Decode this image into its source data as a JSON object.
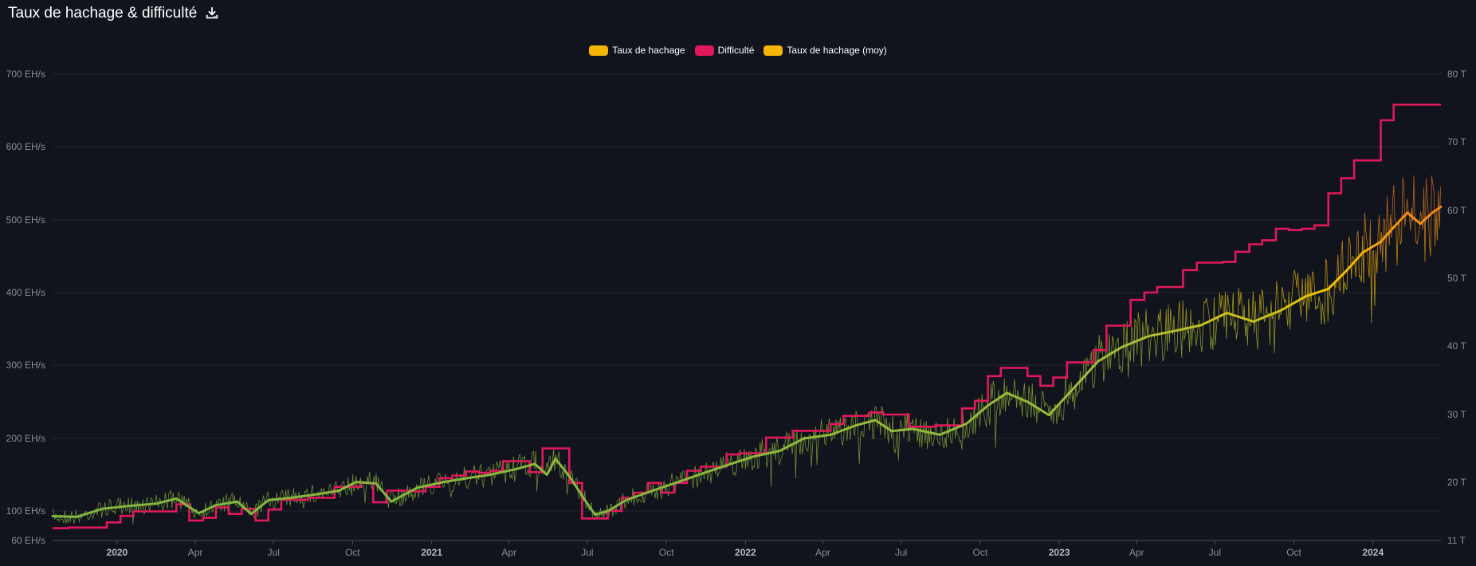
{
  "title": "Taux de hachage & difficulté",
  "download_icon": "download-icon",
  "chart_data": {
    "type": "line",
    "title": "Taux de hachage & difficulté",
    "legend": [
      {
        "name": "Taux de hachage",
        "color": "#f5b400"
      },
      {
        "name": "Difficulté",
        "color": "#e0195a"
      },
      {
        "name": "Taux de hachage (moy)",
        "color": "#f5b400"
      }
    ],
    "legend_position": "top-center",
    "grid": true,
    "y_left": {
      "ticks": [
        "60 EH/s",
        "100 EH/s",
        "200 EH/s",
        "300 EH/s",
        "400 EH/s",
        "500 EH/s",
        "600 EH/s",
        "700 EH/s"
      ],
      "tick_values": [
        60,
        100,
        200,
        300,
        400,
        500,
        600,
        700
      ],
      "range": [
        60,
        700
      ]
    },
    "y_right": {
      "ticks": [
        "11 T",
        "20 T",
        "30 T",
        "40 T",
        "50 T",
        "60 T",
        "70 T",
        "80 T"
      ],
      "tick_values": [
        11,
        20,
        30,
        40,
        50,
        60,
        70,
        80
      ],
      "range": [
        11,
        80
      ]
    },
    "x_ticks": [
      {
        "label": "2020",
        "date": "2020-01-01",
        "year": true
      },
      {
        "label": "Apr",
        "date": "2020-04-01"
      },
      {
        "label": "Jul",
        "date": "2020-07-01"
      },
      {
        "label": "Oct",
        "date": "2020-10-01"
      },
      {
        "label": "2021",
        "date": "2021-01-01",
        "year": true
      },
      {
        "label": "Apr",
        "date": "2021-04-01"
      },
      {
        "label": "Jul",
        "date": "2021-07-01"
      },
      {
        "label": "Oct",
        "date": "2021-10-01"
      },
      {
        "label": "2022",
        "date": "2022-01-01",
        "year": true
      },
      {
        "label": "Apr",
        "date": "2022-04-01"
      },
      {
        "label": "Jul",
        "date": "2022-07-01"
      },
      {
        "label": "Oct",
        "date": "2022-10-01"
      },
      {
        "label": "2023",
        "date": "2023-01-01",
        "year": true
      },
      {
        "label": "Apr",
        "date": "2023-04-01"
      },
      {
        "label": "Jul",
        "date": "2023-07-01"
      },
      {
        "label": "Oct",
        "date": "2023-10-01"
      },
      {
        "label": "2024",
        "date": "2024-01-01",
        "year": true
      }
    ],
    "x_range": [
      "2019-10-18",
      "2024-03-20"
    ],
    "series": [
      {
        "name": "Taux de hachage (moy)",
        "axis": "left",
        "color_gradient": [
          "#7cb342",
          "#f5c400",
          "#f07020"
        ],
        "x": [
          "2019-10-18",
          "2019-11-15",
          "2019-12-15",
          "2020-01-15",
          "2020-02-15",
          "2020-03-10",
          "2020-04-05",
          "2020-04-25",
          "2020-05-20",
          "2020-06-05",
          "2020-06-25",
          "2020-07-20",
          "2020-08-20",
          "2020-09-15",
          "2020-10-05",
          "2020-10-28",
          "2020-11-15",
          "2020-12-15",
          "2021-01-15",
          "2021-02-10",
          "2021-03-10",
          "2021-04-10",
          "2021-05-01",
          "2021-05-15",
          "2021-05-25",
          "2021-06-10",
          "2021-06-30",
          "2021-07-10",
          "2021-07-25",
          "2021-08-15",
          "2021-09-15",
          "2021-10-15",
          "2021-11-15",
          "2021-12-15",
          "2022-01-10",
          "2022-02-10",
          "2022-03-10",
          "2022-04-10",
          "2022-05-10",
          "2022-06-01",
          "2022-06-20",
          "2022-07-15",
          "2022-08-15",
          "2022-09-15",
          "2022-10-10",
          "2022-11-01",
          "2022-11-25",
          "2022-12-20",
          "2023-01-15",
          "2023-02-15",
          "2023-03-15",
          "2023-04-15",
          "2023-05-15",
          "2023-06-15",
          "2023-07-15",
          "2023-08-15",
          "2023-09-15",
          "2023-10-15",
          "2023-11-10",
          "2023-12-01",
          "2023-12-20",
          "2024-01-10",
          "2024-01-25",
          "2024-02-10",
          "2024-02-25",
          "2024-03-10",
          "2024-03-20"
        ],
        "y": [
          93,
          92,
          103,
          107,
          110,
          117,
          97,
          108,
          113,
          96,
          115,
          118,
          123,
          128,
          140,
          138,
          113,
          132,
          140,
          145,
          150,
          158,
          165,
          150,
          172,
          148,
          112,
          95,
          100,
          115,
          128,
          140,
          153,
          165,
          175,
          183,
          200,
          205,
          218,
          225,
          210,
          213,
          205,
          220,
          245,
          262,
          250,
          232,
          265,
          305,
          325,
          340,
          347,
          355,
          372,
          360,
          375,
          395,
          405,
          430,
          455,
          470,
          490,
          510,
          495,
          510,
          518
        ]
      },
      {
        "name": "Difficulté",
        "axis": "right",
        "color": "#e0195a",
        "x": [
          "2019-10-18",
          "2019-11-05",
          "2019-11-20",
          "2019-12-05",
          "2019-12-20",
          "2020-01-05",
          "2020-01-20",
          "2020-02-05",
          "2020-02-20",
          "2020-03-10",
          "2020-03-25",
          "2020-04-10",
          "2020-04-25",
          "2020-05-10",
          "2020-05-25",
          "2020-06-10",
          "2020-06-25",
          "2020-07-10",
          "2020-07-25",
          "2020-08-10",
          "2020-08-25",
          "2020-09-10",
          "2020-09-25",
          "2020-10-10",
          "2020-10-25",
          "2020-11-10",
          "2020-11-25",
          "2020-12-10",
          "2020-12-25",
          "2021-01-10",
          "2021-01-25",
          "2021-02-10",
          "2021-02-25",
          "2021-03-10",
          "2021-03-25",
          "2021-04-10",
          "2021-04-25",
          "2021-05-10",
          "2021-05-25",
          "2021-06-10",
          "2021-06-25",
          "2021-07-10",
          "2021-07-25",
          "2021-08-10",
          "2021-08-25",
          "2021-09-10",
          "2021-09-25",
          "2021-10-10",
          "2021-10-25",
          "2021-11-10",
          "2021-11-25",
          "2021-12-10",
          "2021-12-25",
          "2022-01-10",
          "2022-01-25",
          "2022-02-10",
          "2022-02-25",
          "2022-03-10",
          "2022-03-25",
          "2022-04-10",
          "2022-04-25",
          "2022-05-10",
          "2022-05-25",
          "2022-06-10",
          "2022-06-25",
          "2022-07-10",
          "2022-07-25",
          "2022-08-10",
          "2022-08-25",
          "2022-09-10",
          "2022-09-25",
          "2022-10-10",
          "2022-10-25",
          "2022-11-10",
          "2022-11-25",
          "2022-12-10",
          "2022-12-25",
          "2023-01-10",
          "2023-01-25",
          "2023-02-10",
          "2023-02-25",
          "2023-03-10",
          "2023-03-25",
          "2023-04-10",
          "2023-04-25",
          "2023-05-10",
          "2023-05-25",
          "2023-06-10",
          "2023-06-25",
          "2023-07-10",
          "2023-07-25",
          "2023-08-10",
          "2023-08-25",
          "2023-09-10",
          "2023-09-25",
          "2023-10-10",
          "2023-10-25",
          "2023-11-10",
          "2023-11-25",
          "2023-12-10",
          "2023-12-25",
          "2024-01-10",
          "2024-01-25",
          "2024-02-10",
          "2024-02-25",
          "2024-03-10",
          "2024-03-20"
        ],
        "y": [
          12.9,
          13.0,
          13.0,
          13.0,
          13.8,
          14.8,
          15.5,
          15.5,
          15.5,
          16.6,
          14.1,
          14.5,
          16.1,
          15.1,
          15.9,
          14.1,
          15.8,
          17.3,
          17.3,
          17.6,
          17.6,
          19.3,
          19.3,
          19.9,
          16.9,
          18.7,
          18.7,
          18.6,
          19.3,
          20.6,
          21.0,
          21.6,
          21.4,
          21.7,
          23.1,
          23.1,
          21.5,
          25.0,
          25.0,
          19.9,
          14.4,
          14.4,
          15.6,
          17.6,
          18.4,
          19.9,
          18.4,
          19.9,
          21.7,
          22.3,
          22.3,
          24.1,
          24.3,
          24.3,
          26.6,
          26.6,
          27.6,
          27.6,
          27.6,
          28.6,
          29.8,
          29.8,
          30.3,
          30.0,
          30.0,
          28.2,
          28.2,
          28.4,
          28.4,
          30.9,
          32.0,
          35.6,
          36.8,
          36.8,
          35.6,
          34.2,
          35.4,
          37.6,
          37.6,
          39.4,
          43.0,
          43.0,
          46.8,
          47.9,
          48.7,
          48.7,
          51.2,
          52.3,
          52.3,
          52.4,
          53.9,
          55.0,
          55.6,
          57.3,
          57.1,
          57.3,
          57.8,
          62.5,
          64.7,
          67.3,
          67.3,
          73.2,
          75.5,
          75.5,
          75.5,
          75.5,
          75.5
        ]
      }
    ]
  }
}
